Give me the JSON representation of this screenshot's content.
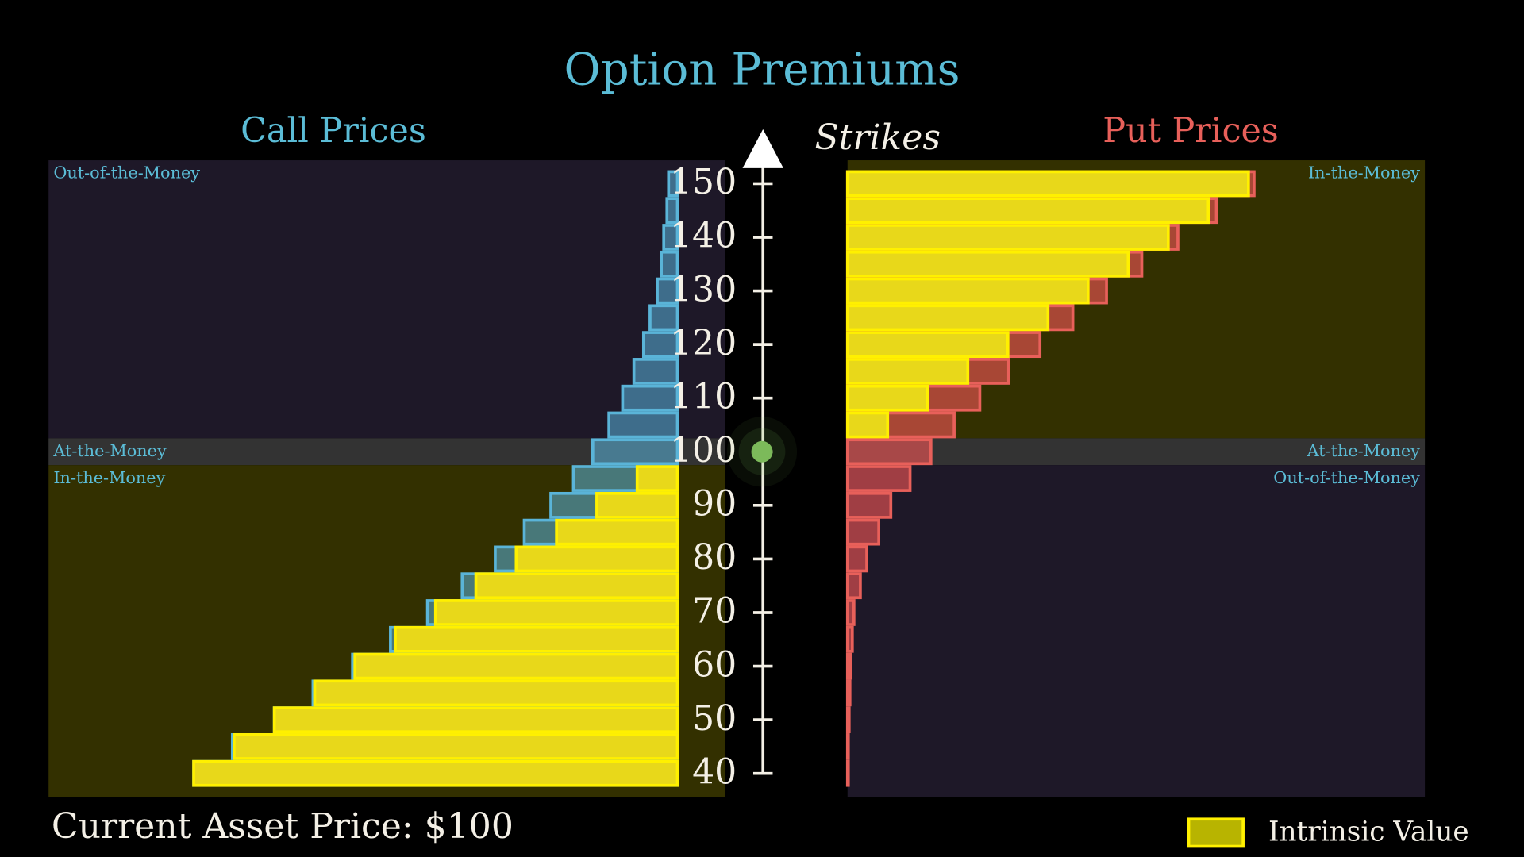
{
  "chart_data": {
    "type": "bar",
    "title": "Option Premiums",
    "y_label": "Strikes",
    "y": [
      40,
      45,
      50,
      55,
      60,
      65,
      70,
      75,
      80,
      85,
      90,
      95,
      100,
      105,
      110,
      115,
      120,
      125,
      130,
      135,
      140,
      145,
      150
    ],
    "ylim": [
      35.65,
      154.35
    ],
    "yticks": [
      40,
      50,
      60,
      70,
      80,
      90,
      100,
      110,
      120,
      130,
      140,
      150
    ],
    "current_price": 100,
    "current_price_label": "Current Asset Price: $100",
    "calls": {
      "title": "Call Prices",
      "color": "#5ab4d8",
      "xlim": [
        0,
        78
      ],
      "values": [
        60.0,
        55.2,
        50.0,
        45.2,
        40.3,
        35.6,
        31.0,
        26.7,
        22.6,
        19.0,
        15.7,
        12.9,
        10.5,
        8.5,
        6.8,
        5.4,
        4.2,
        3.4,
        2.5,
        2.0,
        1.7,
        1.3,
        1.1
      ],
      "intrinsic": [
        60,
        55,
        50,
        45,
        40,
        35,
        30,
        25,
        20,
        15,
        10,
        5,
        0,
        0,
        0,
        0,
        0,
        0,
        0,
        0,
        0,
        0,
        0
      ],
      "regions": {
        "upper": "Out-of-the-Money",
        "atm": "At-the-Money",
        "lower": "In-the-Money"
      }
    },
    "puts": {
      "title": "Put Prices",
      "color": "#e8605a",
      "xlim": [
        0,
        72
      ],
      "values": [
        0.1,
        0.1,
        0.2,
        0.3,
        0.4,
        0.6,
        0.8,
        1.6,
        2.4,
        3.9,
        5.4,
        7.8,
        10.4,
        13.3,
        16.5,
        20.1,
        24.0,
        28.1,
        32.3,
        36.7,
        41.2,
        46.0,
        50.7
      ],
      "intrinsic": [
        0,
        0,
        0,
        0,
        0,
        0,
        0,
        0,
        0,
        0,
        0,
        0,
        0,
        5,
        10,
        15,
        20,
        25,
        30,
        35,
        40,
        45,
        50
      ],
      "regions": {
        "upper": "In-the-Money",
        "atm": "At-the-Money",
        "lower": "Out-of-the-Money"
      }
    },
    "legend": {
      "label": "Intrinsic Value",
      "color": "#e8d81a"
    }
  }
}
